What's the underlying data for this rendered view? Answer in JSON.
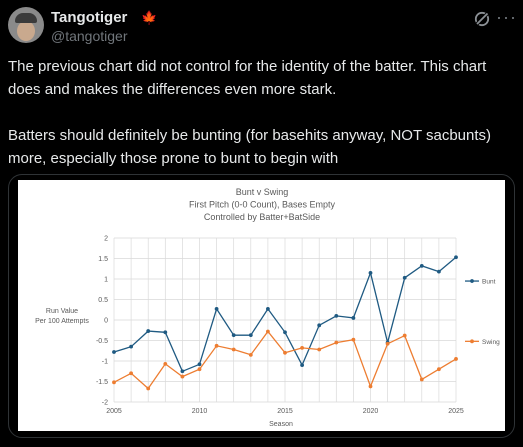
{
  "post": {
    "display_name": "Tangotiger",
    "flag": "🍁",
    "handle": "@tangotiger",
    "more": "···",
    "paragraphs": [
      "The previous chart did not control for the identity of the batter.  This chart does and makes the differences even more stark.",
      "Batters should definitely be bunting (for basehits anyway, NOT sacbunts) more, especially those prone to bunt to begin with"
    ]
  },
  "chart_data": {
    "type": "line",
    "title": "Bunt v Swing",
    "subtitle": [
      "First Pitch (0-0 Count), Bases Empty",
      "Controlled by Batter+BatSide"
    ],
    "xlabel": "Season",
    "ylabel": [
      "Run Value",
      "Per 100 Attempts"
    ],
    "xlim": [
      2005,
      2025
    ],
    "ylim": [
      -2,
      2
    ],
    "xticks": [
      2005,
      2010,
      2015,
      2020,
      2025
    ],
    "yticks": [
      2,
      1.5,
      1,
      0.5,
      0,
      -0.5,
      -1,
      -1.5,
      -2
    ],
    "ytick_labels": [
      "2",
      "1.5",
      "1",
      "0.5",
      "0",
      "-0.5",
      "-1",
      "-1.5",
      "-2"
    ],
    "grid": true,
    "legend": "right",
    "x": [
      2005,
      2006,
      2007,
      2008,
      2009,
      2010,
      2011,
      2012,
      2013,
      2014,
      2015,
      2016,
      2017,
      2018,
      2019,
      2020,
      2021,
      2022,
      2023,
      2024,
      2025
    ],
    "series": [
      {
        "name": "Bunt",
        "color": "#1f5a82",
        "values": [
          -0.78,
          -0.65,
          -0.27,
          -0.3,
          -1.25,
          -1.08,
          0.27,
          -0.37,
          -0.37,
          0.27,
          -0.3,
          -1.1,
          -0.13,
          0.1,
          0.05,
          1.15,
          -0.55,
          1.03,
          1.32,
          1.18,
          1.53
        ]
      },
      {
        "name": "Swing",
        "color": "#ed7d31",
        "values": [
          -1.52,
          -1.3,
          -1.67,
          -1.07,
          -1.38,
          -1.2,
          -0.63,
          -0.72,
          -0.85,
          -0.28,
          -0.8,
          -0.68,
          -0.72,
          -0.55,
          -0.48,
          -1.62,
          -0.58,
          -0.38,
          -1.45,
          -1.2,
          -0.95
        ]
      }
    ]
  }
}
